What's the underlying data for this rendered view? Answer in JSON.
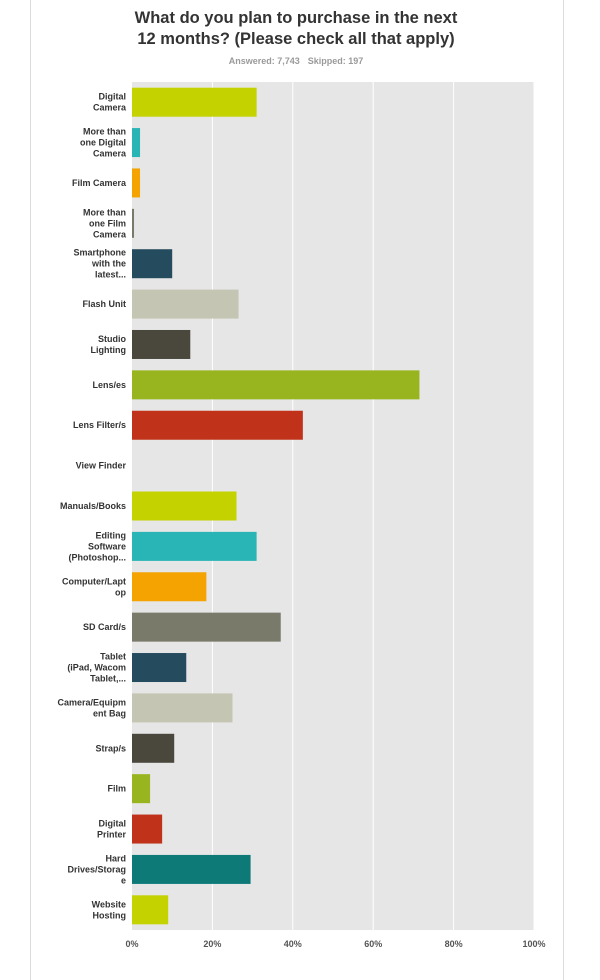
{
  "question": {
    "title_line1": "What do you plan to purchase in the next",
    "title_line2": "12 months? (Please check all that apply)"
  },
  "stats": {
    "answered": "Answered: 7,743",
    "skipped": "Skipped: 197"
  },
  "chart_data": {
    "type": "bar",
    "orientation": "horizontal",
    "xlim": [
      0,
      100
    ],
    "x_ticks": [
      "0%",
      "20%",
      "40%",
      "60%",
      "80%",
      "100%"
    ],
    "grid": true,
    "categories": [
      [
        "Digital",
        "Camera"
      ],
      [
        "More than",
        "one Digital",
        "Camera"
      ],
      [
        "Film Camera"
      ],
      [
        "More than",
        "one Film",
        "Camera"
      ],
      [
        "Smartphone",
        "with the",
        "latest..."
      ],
      [
        "Flash Unit"
      ],
      [
        "Studio",
        "Lighting"
      ],
      [
        "Lens/es"
      ],
      [
        "Lens Filter/s"
      ],
      [
        "View Finder"
      ],
      [
        "Manuals/Books"
      ],
      [
        "Editing",
        "Software",
        "(Photoshop..."
      ],
      [
        "Computer/Lapt",
        "op"
      ],
      [
        "SD Card/s"
      ],
      [
        "Tablet",
        "(iPad, Wacom",
        "Tablet,..."
      ],
      [
        "Camera/Equipm",
        "ent Bag"
      ],
      [
        "Strap/s"
      ],
      [
        "Film"
      ],
      [
        "Digital",
        "Printer"
      ],
      [
        "Hard",
        "Drives/Storag",
        "e"
      ],
      [
        "Website",
        "Hosting"
      ]
    ],
    "values": [
      31,
      2,
      2,
      0.5,
      10,
      26.5,
      14.5,
      71.5,
      42.5,
      0,
      26,
      31,
      18.5,
      37,
      13.5,
      25,
      10.5,
      4.5,
      7.5,
      29.5,
      9
    ],
    "colors": [
      "#c4d200",
      "#29b5b5",
      "#f4a300",
      "#7a7a6a",
      "#254c5e",
      "#c5c5b3",
      "#4a473c",
      "#98b41f",
      "#c0321a",
      "#c4d200",
      "#c4d200",
      "#29b5b5",
      "#f4a300",
      "#7a7a6a",
      "#254c5e",
      "#c5c5b3",
      "#4a473c",
      "#98b41f",
      "#c0321a",
      "#0e7a78",
      "#c4d200"
    ]
  }
}
